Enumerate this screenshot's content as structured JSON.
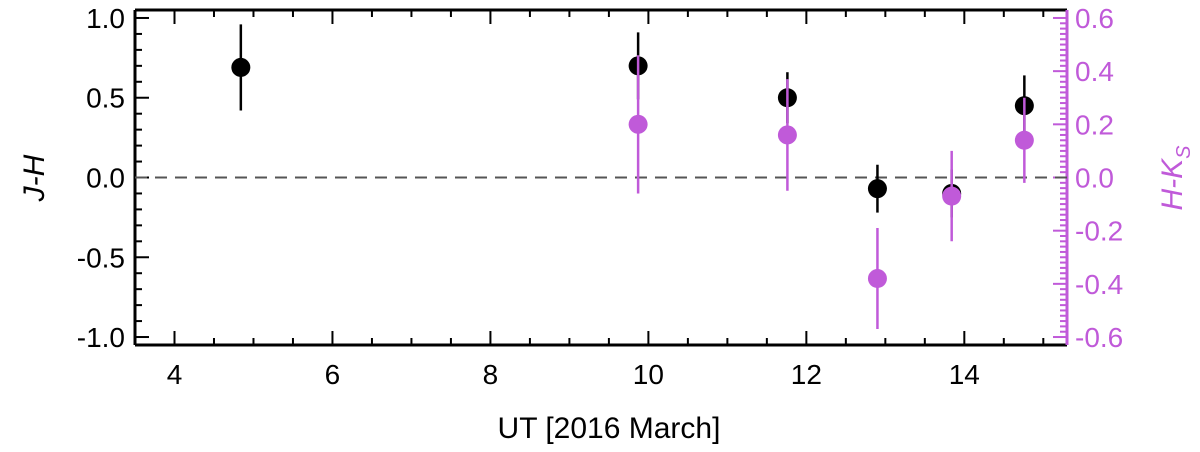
{
  "chart_data": {
    "type": "scatter",
    "xlabel": "UT [2016 March]",
    "ylabel_left": "J-H",
    "ylabel_right": "H-K",
    "ylabel_right_sub": "S",
    "xlim": [
      3.5,
      15.3
    ],
    "ylim_left": [
      -1.05,
      1.05
    ],
    "ylim_right": [
      -0.63,
      0.63
    ],
    "x_ticks": [
      "4",
      "6",
      "8",
      "10",
      "12",
      "14"
    ],
    "y_left_ticks": [
      "1.0",
      "0.5",
      "0.0",
      "-0.5",
      "-1.0"
    ],
    "y_right_ticks": [
      "0.6",
      "0.4",
      "0.2",
      "0.0",
      "-0.2",
      "-0.4",
      "-0.6"
    ],
    "reference_line": {
      "axis": "left",
      "y": 0,
      "style": "dashed"
    },
    "series": [
      {
        "axis": "left",
        "color": "#000000",
        "points": [
          {
            "x": 4.84,
            "y": 0.69,
            "err": 0.27
          },
          {
            "x": 9.87,
            "y": 0.7,
            "err": 0.21
          },
          {
            "x": 11.76,
            "y": 0.5,
            "err": 0.16
          },
          {
            "x": 12.9,
            "y": -0.07,
            "err": 0.15
          },
          {
            "x": 13.84,
            "y": -0.1,
            "err": 0.15
          },
          {
            "x": 14.76,
            "y": 0.45,
            "err": 0.19
          }
        ]
      },
      {
        "axis": "right",
        "color": "#c05ad9",
        "points": [
          {
            "x": 9.87,
            "y": 0.2,
            "err": 0.26
          },
          {
            "x": 11.76,
            "y": 0.16,
            "err": 0.21
          },
          {
            "x": 12.9,
            "y": -0.38,
            "err": 0.19
          },
          {
            "x": 13.84,
            "y": -0.07,
            "err": 0.17
          },
          {
            "x": 14.76,
            "y": 0.14,
            "err": 0.16
          }
        ]
      }
    ]
  }
}
